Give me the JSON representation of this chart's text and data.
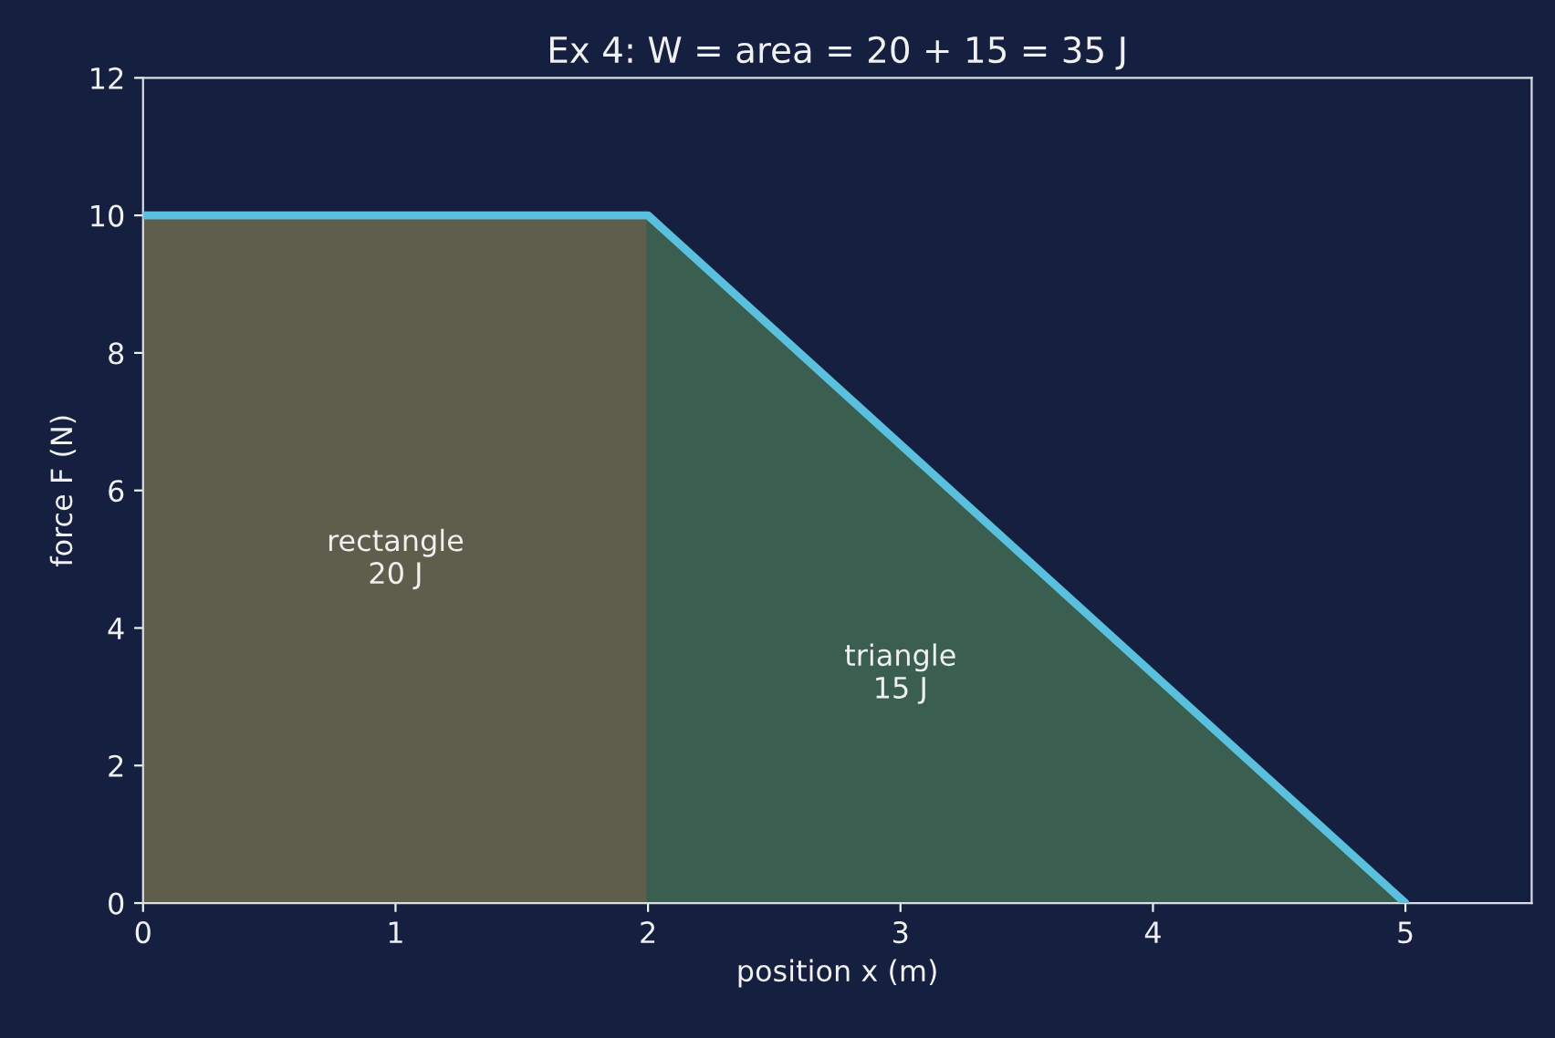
{
  "chart_data": {
    "type": "line",
    "title": "Ex 4: W = area = 20 + 15 = 35 J",
    "xlabel": "position x (m)",
    "ylabel": "force F (N)",
    "series": [
      {
        "type": "area",
        "color": "#5f5e4c",
        "x": [
          0,
          2
        ],
        "values": [
          10,
          10
        ]
      },
      {
        "type": "area",
        "color": "#3a5e50",
        "x": [
          2,
          5
        ],
        "values": [
          10,
          0
        ]
      },
      {
        "color": "#5bc0de",
        "x": [
          0,
          2,
          5
        ],
        "values": [
          10,
          10,
          0
        ]
      }
    ],
    "annotations": [
      "rectangle\n20 J",
      "triangle\n15 J"
    ],
    "xlim": [
      0,
      5.5
    ],
    "xticks": [
      0,
      1,
      2,
      3,
      4,
      5
    ],
    "ylim": [
      0,
      12
    ],
    "yticks": [
      0,
      2,
      4,
      6,
      8,
      10,
      12
    ],
    "grid": false,
    "legend": false
  }
}
